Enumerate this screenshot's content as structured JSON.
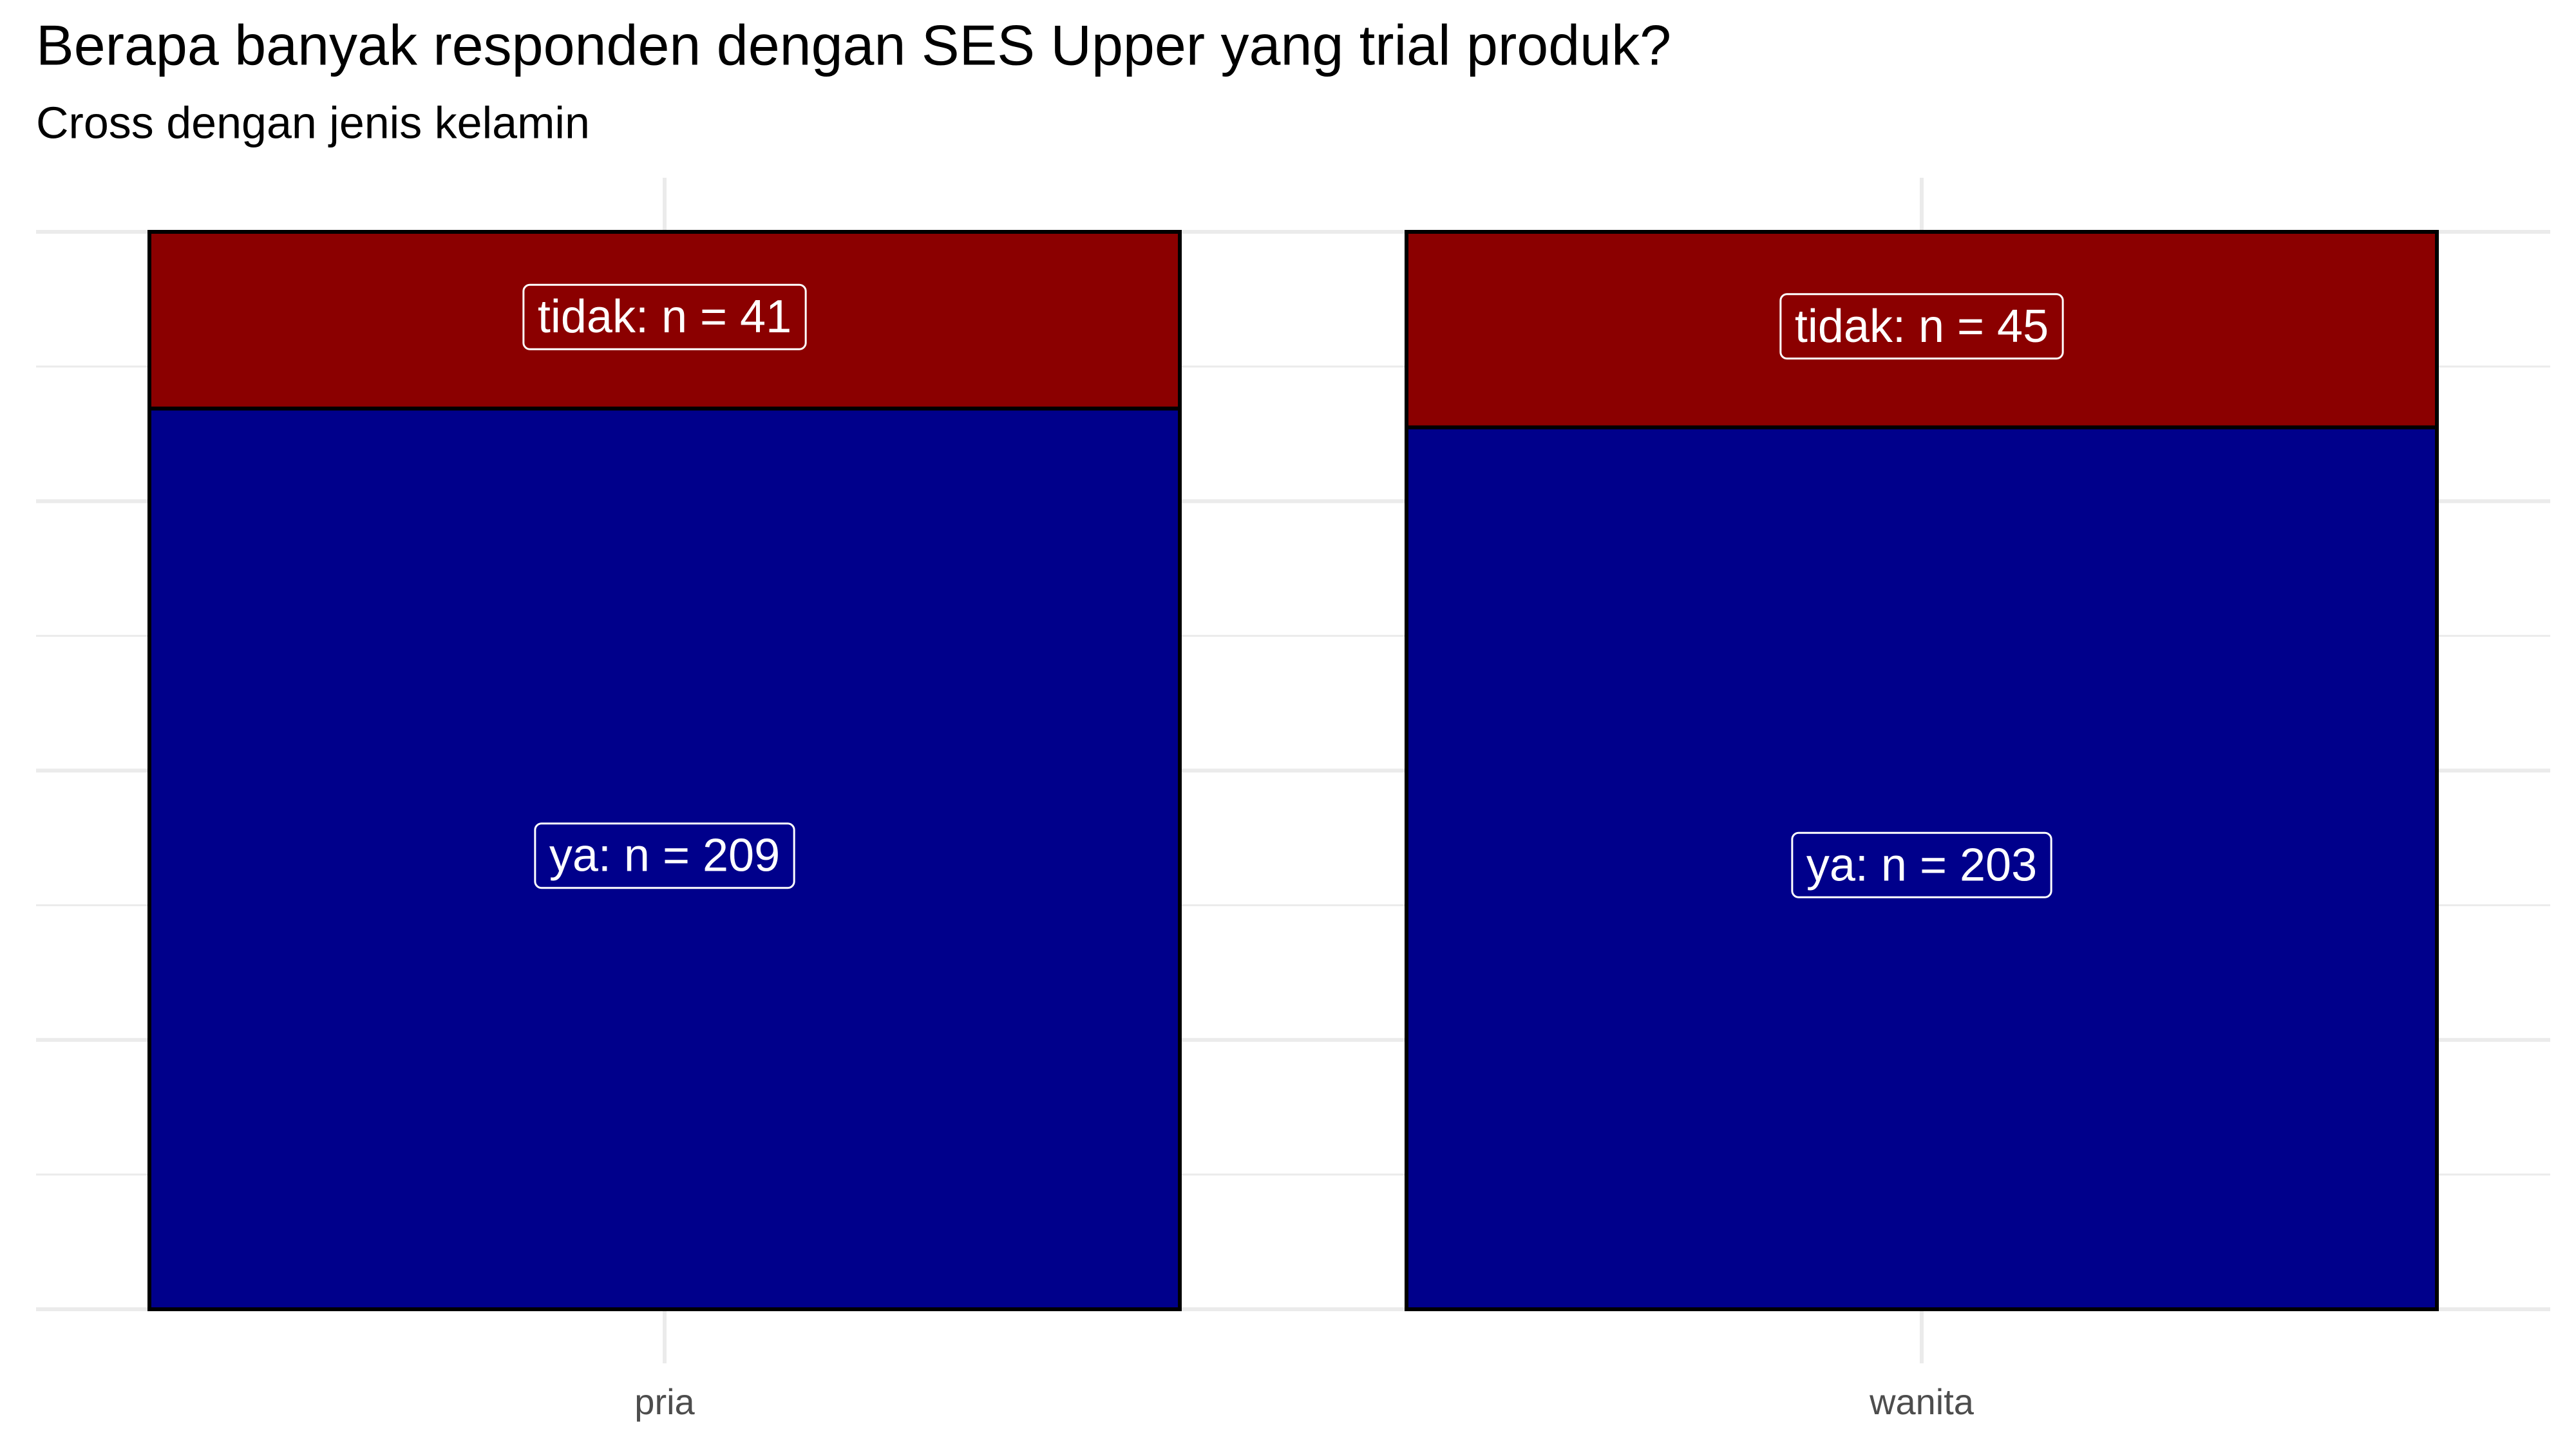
{
  "chart_data": {
    "type": "bar",
    "position": "fill",
    "title": "Berapa banyak responden dengan SES Upper yang trial produk?",
    "subtitle": "Cross dengan jenis kelamin",
    "categories": [
      "pria",
      "wanita"
    ],
    "series": [
      {
        "name": "ya",
        "color": "#00008b",
        "values": [
          209,
          203
        ],
        "value_labels": [
          "ya: n = 209",
          "ya: n = 203"
        ]
      },
      {
        "name": "tidak",
        "color": "#8b0000",
        "values": [
          41,
          45
        ],
        "value_labels": [
          "tidak: n = 41",
          "tidak: n = 45"
        ]
      }
    ],
    "grid": true
  }
}
